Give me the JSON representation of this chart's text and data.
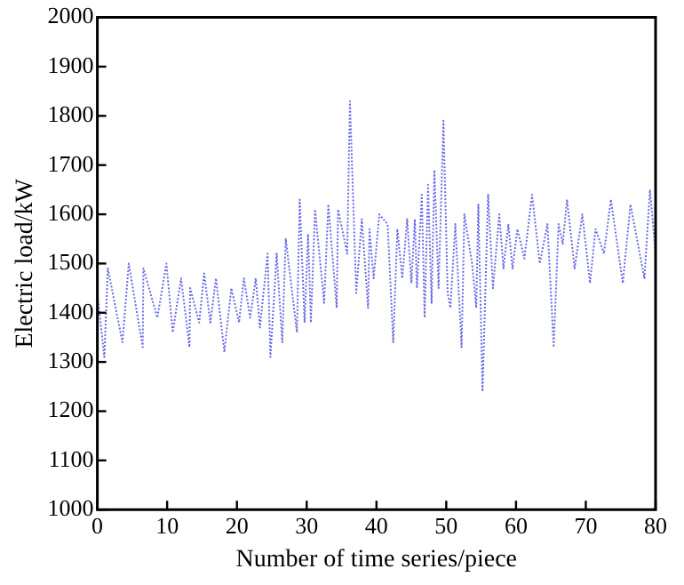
{
  "chart_data": {
    "type": "line",
    "xlabel": "Number of time series/piece",
    "ylabel": "Electric load/kW",
    "xlim": [
      0,
      80
    ],
    "xticks": [
      0,
      10,
      20,
      30,
      40,
      50,
      60,
      70,
      80
    ],
    "ylim": [
      1000,
      2000
    ],
    "yticks": [
      1000,
      1100,
      1200,
      1300,
      1400,
      1500,
      1600,
      1700,
      1800,
      1900,
      2000
    ],
    "grid": false,
    "legend": false,
    "marker": "none",
    "line_style": "dotted",
    "series": [
      {
        "color": "#6a6ae6",
        "x": [
          0,
          1,
          1.5,
          3.6,
          4.5,
          6.5,
          6.6,
          8.6,
          9.9,
          10.8,
          12,
          13.2,
          13.3,
          14.6,
          15.3,
          16.2,
          17,
          18.2,
          19.2,
          20.3,
          21,
          21.9,
          22.7,
          23.3,
          24.4,
          24.8,
          25.7,
          26.5,
          27,
          28.6,
          29,
          29.7,
          30.2,
          30.6,
          31.2,
          32.5,
          33.1,
          34.3,
          34.5,
          35.8,
          36.2,
          37.1,
          37.9,
          38.8,
          39,
          39.6,
          40.4,
          41.6,
          42.4,
          43,
          43.7,
          44.4,
          45,
          45.5,
          45.8,
          46.5,
          46.9,
          47.4,
          47.9,
          48.3,
          48.9,
          49.6,
          50.2,
          50.6,
          51.3,
          52.2,
          52.6,
          53.7,
          54.3,
          54.6,
          55.2,
          56,
          56.7,
          57.6,
          58.2,
          58.9,
          59.5,
          60.2,
          61.2,
          62.3,
          63.4,
          64.5,
          65.4,
          66.1,
          66.7,
          67.3,
          68.4,
          69.5,
          70.6,
          71.4,
          72.6,
          73.6,
          75.3,
          76.4,
          78.4,
          79.2,
          80
        ],
        "values": [
          1440,
          1310,
          1490,
          1340,
          1500,
          1330,
          1490,
          1390,
          1500,
          1360,
          1470,
          1330,
          1450,
          1380,
          1480,
          1380,
          1470,
          1320,
          1450,
          1380,
          1470,
          1390,
          1470,
          1370,
          1520,
          1310,
          1520,
          1340,
          1550,
          1360,
          1630,
          1380,
          1560,
          1380,
          1610,
          1420,
          1620,
          1410,
          1610,
          1520,
          1830,
          1440,
          1590,
          1410,
          1570,
          1470,
          1600,
          1580,
          1340,
          1570,
          1470,
          1590,
          1460,
          1590,
          1450,
          1640,
          1390,
          1660,
          1420,
          1690,
          1450,
          1790,
          1440,
          1410,
          1580,
          1330,
          1600,
          1500,
          1410,
          1620,
          1240,
          1640,
          1450,
          1600,
          1490,
          1580,
          1490,
          1570,
          1510,
          1640,
          1500,
          1580,
          1330,
          1580,
          1540,
          1630,
          1490,
          1600,
          1460,
          1570,
          1520,
          1630,
          1460,
          1620,
          1470,
          1650,
          1520
        ]
      }
    ]
  }
}
